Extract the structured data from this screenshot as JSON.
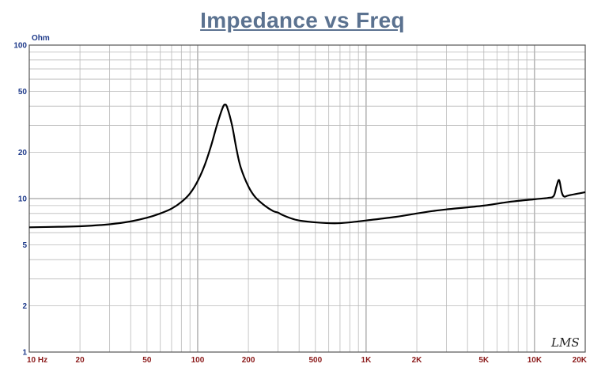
{
  "chart_data": {
    "type": "line",
    "title": "Impedance vs Freq",
    "ylabel": "Ohm",
    "xlabel": "",
    "x_scale": "log",
    "y_scale": "log",
    "xlim": [
      10,
      20000
    ],
    "ylim": [
      1,
      100
    ],
    "grid": true,
    "x_tick_labels": [
      {
        "value": 10,
        "label": "10 Hz"
      },
      {
        "value": 20,
        "label": "20"
      },
      {
        "value": 50,
        "label": "50"
      },
      {
        "value": 100,
        "label": "100"
      },
      {
        "value": 200,
        "label": "200"
      },
      {
        "value": 500,
        "label": "500"
      },
      {
        "value": 1000,
        "label": "1K"
      },
      {
        "value": 2000,
        "label": "2K"
      },
      {
        "value": 5000,
        "label": "5K"
      },
      {
        "value": 10000,
        "label": "10K"
      },
      {
        "value": 20000,
        "label": "20K"
      }
    ],
    "y_tick_labels": [
      {
        "value": 100,
        "label": "100"
      },
      {
        "value": 50,
        "label": "50"
      },
      {
        "value": 20,
        "label": "20"
      },
      {
        "value": 10,
        "label": "10"
      },
      {
        "value": 5,
        "label": "5"
      },
      {
        "value": 2,
        "label": "2"
      },
      {
        "value": 1,
        "label": "1"
      }
    ],
    "series": [
      {
        "color": "#000000",
        "x": [
          10,
          15,
          20,
          30,
          40,
          50,
          60,
          70,
          80,
          90,
          100,
          110,
          120,
          130,
          140,
          145,
          150,
          160,
          170,
          180,
          200,
          220,
          250,
          280,
          300,
          320,
          350,
          400,
          500,
          650,
          800,
          1000,
          1500,
          2000,
          2500,
          3000,
          5000,
          7000,
          10000,
          12000,
          13000,
          13500,
          14000,
          14500,
          15000,
          16000,
          20000
        ],
        "y": [
          6.5,
          6.55,
          6.6,
          6.8,
          7.1,
          7.5,
          8.0,
          8.6,
          9.5,
          10.8,
          13.0,
          16.5,
          22.0,
          30.0,
          38.5,
          41.0,
          39.0,
          30.0,
          21.0,
          16.0,
          12.0,
          10.2,
          9.0,
          8.3,
          8.1,
          7.8,
          7.5,
          7.2,
          7.0,
          6.9,
          7.0,
          7.2,
          7.6,
          8.0,
          8.3,
          8.5,
          9.0,
          9.5,
          9.9,
          10.1,
          10.4,
          12.0,
          13.2,
          11.0,
          10.3,
          10.5,
          11.0
        ]
      }
    ]
  },
  "watermark": "LMS"
}
